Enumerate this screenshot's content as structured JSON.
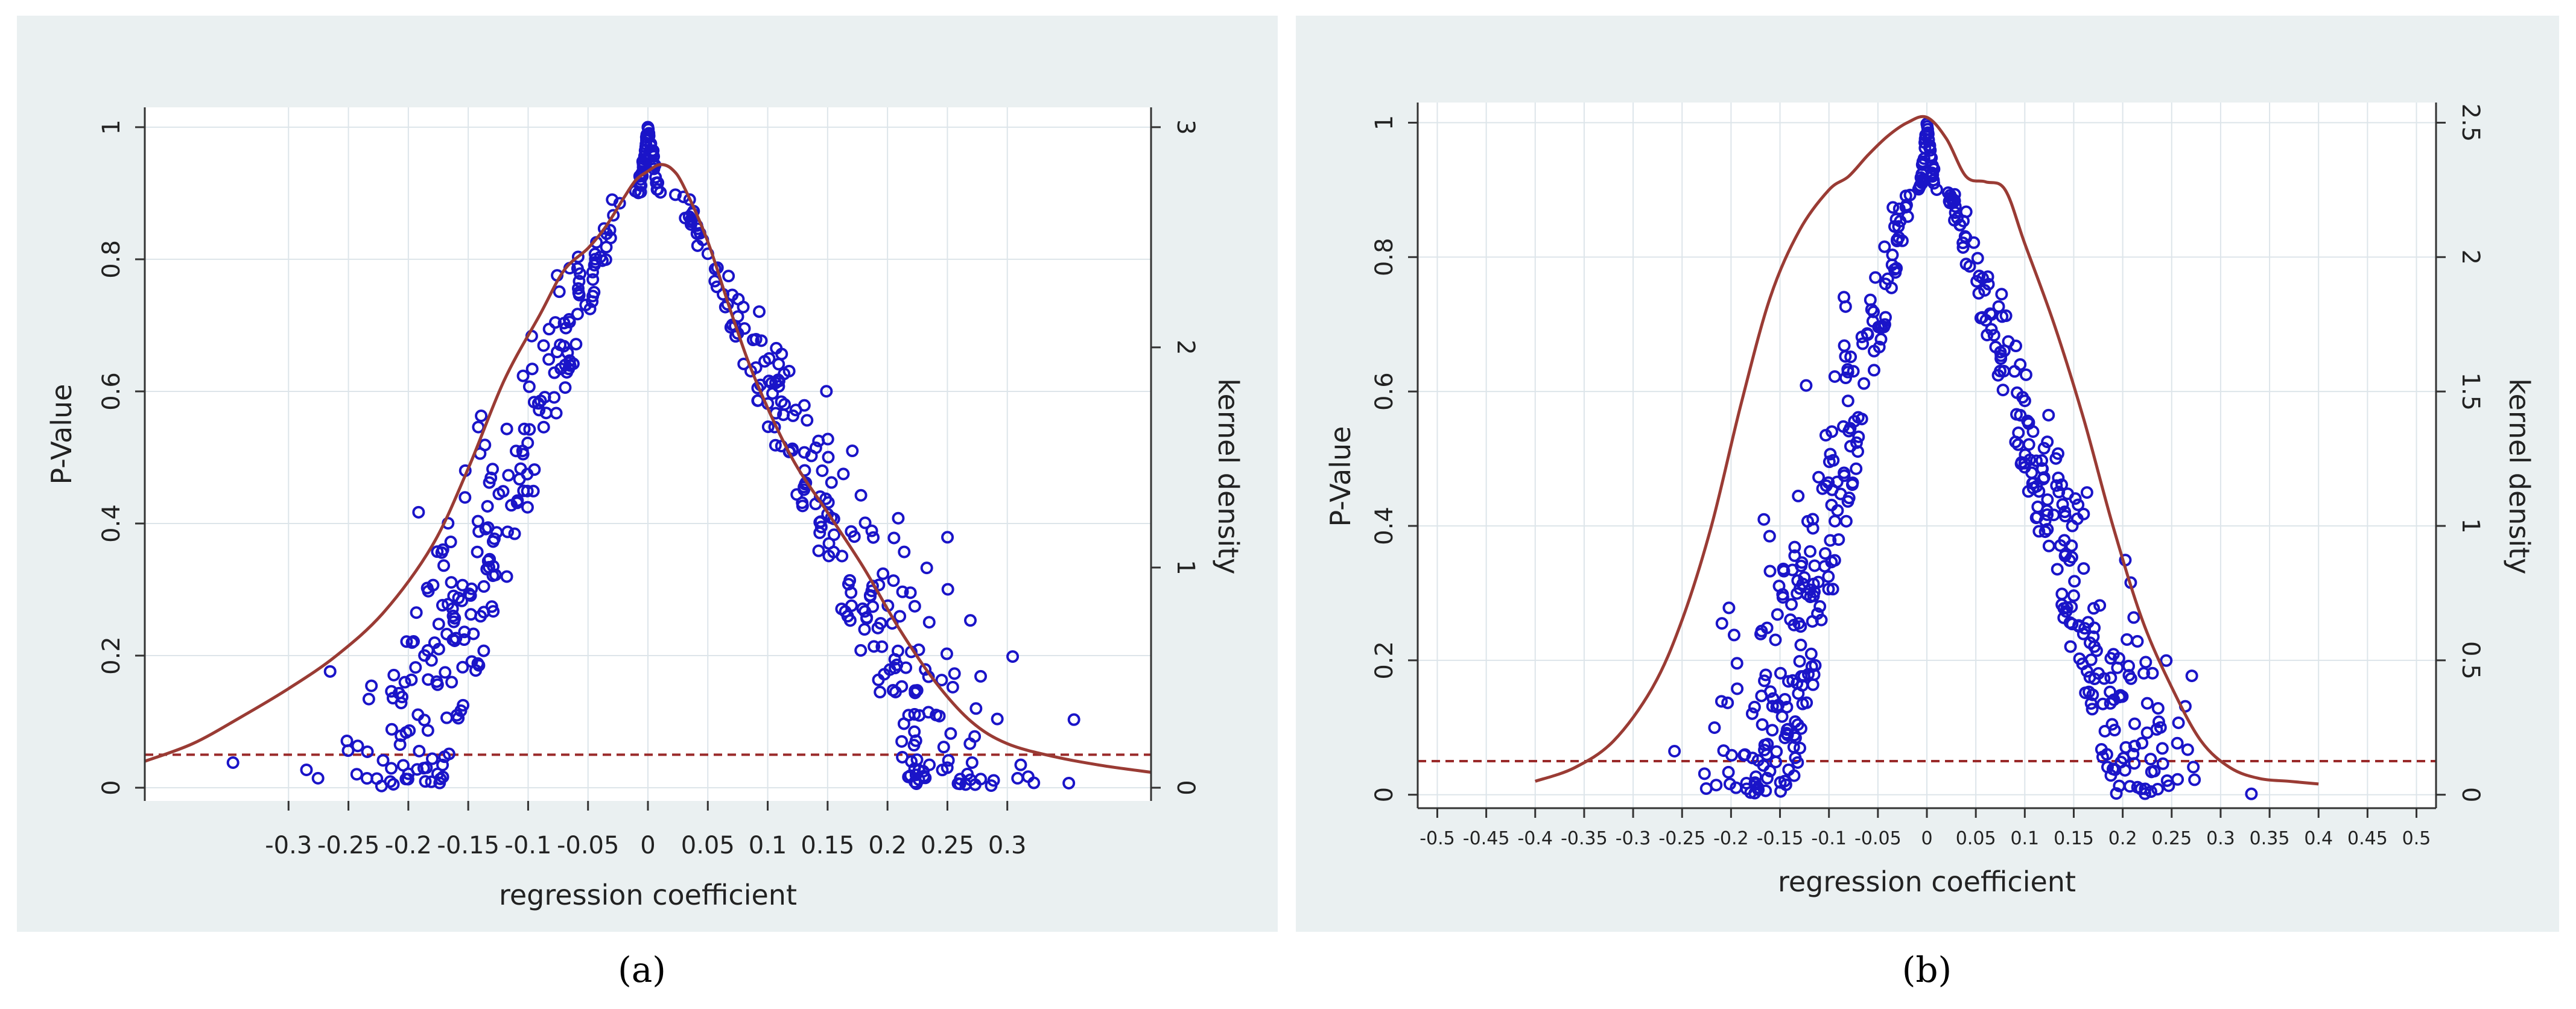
{
  "colors": {
    "panel_bg": "#eaf0f1",
    "points": "#1a14c8",
    "density": "#9a3b34",
    "reference_line": "#9a2a2a"
  },
  "chart_data": [
    {
      "type": "scatter",
      "caption": "(a)",
      "xlabel": "regression coefficient",
      "ylabel": "P-Value",
      "y2label": "kernel density",
      "xlim": [
        -0.42,
        0.42
      ],
      "ylim": [
        -0.02,
        1.03
      ],
      "y2lim": [
        -0.06,
        3.09
      ],
      "xticks": [
        -0.3,
        -0.25,
        -0.2,
        -0.15,
        -0.1,
        -0.05,
        0,
        0.05,
        0.1,
        0.15,
        0.2,
        0.25,
        0.3
      ],
      "xtick_labels": [
        "-0.3",
        "-0.25",
        "-0.2",
        "-0.15",
        "-0.1",
        "-0.05",
        "0",
        "0.05",
        "0.1",
        "0.15",
        "0.2",
        "0.25",
        "0.3"
      ],
      "yticks": [
        0,
        0.2,
        0.4,
        0.6,
        0.8,
        1
      ],
      "ytick_labels": [
        "0",
        "0.2",
        "0.4",
        "0.6",
        "0.8",
        "1"
      ],
      "y2ticks": [
        0,
        1,
        2,
        3
      ],
      "y2tick_labels": [
        "0",
        "1",
        "2",
        "3"
      ],
      "reference_line": 0.05,
      "density_x": [
        -0.42,
        -0.38,
        -0.34,
        -0.3,
        -0.26,
        -0.22,
        -0.18,
        -0.15,
        -0.12,
        -0.09,
        -0.07,
        -0.05,
        -0.035,
        -0.02,
        -0.01,
        0,
        0.01,
        0.02,
        0.03,
        0.05,
        0.07,
        0.09,
        0.12,
        0.15,
        0.18,
        0.21,
        0.24,
        0.27,
        0.3,
        0.34,
        0.38,
        0.42
      ],
      "density_y": [
        0.12,
        0.2,
        0.32,
        0.45,
        0.6,
        0.8,
        1.1,
        1.45,
        1.85,
        2.15,
        2.35,
        2.45,
        2.55,
        2.68,
        2.76,
        2.8,
        2.83,
        2.81,
        2.73,
        2.48,
        2.15,
        1.85,
        1.5,
        1.25,
        1.0,
        0.72,
        0.48,
        0.3,
        0.2,
        0.14,
        0.1,
        0.07
      ],
      "seed": 11,
      "points_count": 520
    },
    {
      "type": "scatter",
      "caption": "(b)",
      "xlabel": "regression coefficient",
      "ylabel": "P-Value",
      "y2label": "kernel density",
      "xlim": [
        -0.52,
        0.52
      ],
      "ylim": [
        -0.02,
        1.03
      ],
      "y2lim": [
        -0.05,
        2.575
      ],
      "xticks": [
        -0.5,
        -0.45,
        -0.4,
        -0.35,
        -0.3,
        -0.25,
        -0.2,
        -0.15,
        -0.1,
        -0.05,
        0,
        0.05,
        0.1,
        0.15,
        0.2,
        0.25,
        0.3,
        0.35,
        0.4,
        0.45,
        0.5
      ],
      "xtick_labels": [
        "-0.5",
        "-0.45",
        "-0.4",
        "-0.35",
        "-0.3",
        "-0.25",
        "-0.2",
        "-0.15",
        "-0.1",
        "-0.05",
        "0",
        "0.05",
        "0.1",
        "0.15",
        "0.2",
        "0.25",
        "0.3",
        "0.35",
        "0.4",
        "0.45",
        "0.5"
      ],
      "yticks": [
        0,
        0.2,
        0.4,
        0.6,
        0.8,
        1
      ],
      "ytick_labels": [
        "0",
        "0.2",
        "0.4",
        "0.6",
        "0.8",
        "1"
      ],
      "y2ticks": [
        0,
        0.5,
        1,
        1.5,
        2,
        2.5
      ],
      "y2tick_labels": [
        "0",
        "0.5",
        "1",
        "1.5",
        "2",
        "2.5"
      ],
      "reference_line": 0.05,
      "density_x": [
        -0.4,
        -0.36,
        -0.32,
        -0.28,
        -0.25,
        -0.22,
        -0.19,
        -0.16,
        -0.13,
        -0.1,
        -0.08,
        -0.06,
        -0.04,
        -0.02,
        0,
        0.02,
        0.04,
        0.06,
        0.08,
        0.1,
        0.13,
        0.16,
        0.19,
        0.22,
        0.25,
        0.28,
        0.31,
        0.34,
        0.37,
        0.4
      ],
      "density_y": [
        0.05,
        0.1,
        0.2,
        0.4,
        0.65,
        1.0,
        1.45,
        1.85,
        2.1,
        2.25,
        2.3,
        2.38,
        2.45,
        2.5,
        2.52,
        2.44,
        2.3,
        2.28,
        2.25,
        2.05,
        1.75,
        1.4,
        1.0,
        0.65,
        0.4,
        0.2,
        0.1,
        0.06,
        0.05,
        0.04
      ],
      "seed": 29,
      "points_count": 520
    }
  ]
}
